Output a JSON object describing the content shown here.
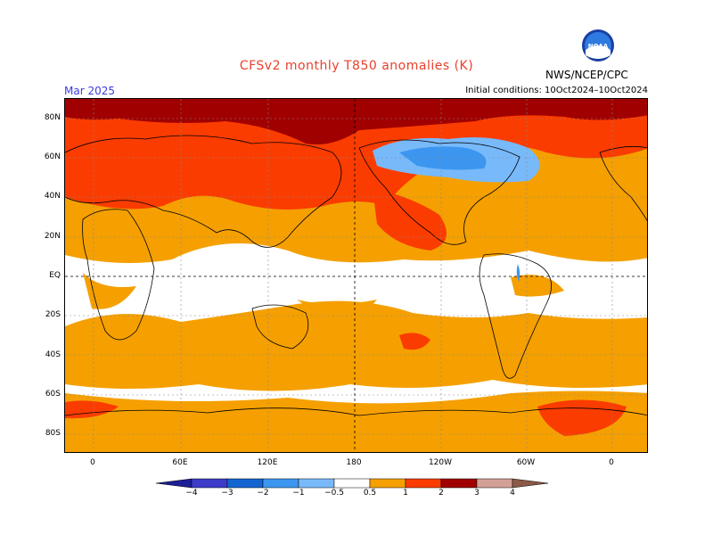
{
  "header": {
    "title": "CFSv2 monthly T850 anomalies (K)",
    "month": "Mar 2025",
    "agency": "NWS/NCEP/CPC",
    "initial_conditions": "Initial conditions: 10Oct2024–10Oct2024",
    "logo_text": "NOAA"
  },
  "map": {
    "lat_labels": [
      "80N",
      "60N",
      "40N",
      "20N",
      "EQ",
      "20S",
      "40S",
      "60S",
      "80S"
    ],
    "lon_labels": [
      "0",
      "60E",
      "120E",
      "180",
      "120W",
      "60W",
      "0"
    ]
  },
  "colorbar": {
    "labels": [
      "−4",
      "−3",
      "−2",
      "−1",
      "−0.5",
      "0.5",
      "1",
      "2",
      "3",
      "4"
    ],
    "colors": [
      "#1e1e96",
      "#3c3cc8",
      "#1464d2",
      "#3c96f0",
      "#78b9fa",
      "#ffffff",
      "#f5a000",
      "#fa3c00",
      "#a00000",
      "#d2a096",
      "#8c5a46"
    ]
  }
}
